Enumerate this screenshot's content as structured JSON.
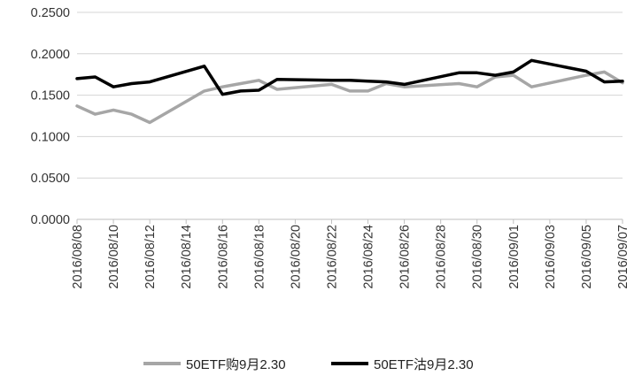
{
  "chart_data": {
    "type": "line",
    "title": "",
    "xlabel": "",
    "ylabel": "",
    "ylim": [
      0,
      0.25
    ],
    "y_ticks": [
      "0.0000",
      "0.0500",
      "0.1000",
      "0.1500",
      "0.2000",
      "0.2500"
    ],
    "grid": "horizontal",
    "legend_position": "bottom",
    "x_ticks": [
      "2016/08/08",
      "2016/08/10",
      "2016/08/12",
      "2016/08/14",
      "2016/08/16",
      "2016/08/18",
      "2016/08/20",
      "2016/08/22",
      "2016/08/24",
      "2016/08/26",
      "2016/08/28",
      "2016/08/30",
      "2016/09/01",
      "2016/09/03",
      "2016/09/05",
      "2016/09/07"
    ],
    "x": [
      "2016/08/08",
      "2016/08/09",
      "2016/08/10",
      "2016/08/11",
      "2016/08/12",
      "2016/08/15",
      "2016/08/16",
      "2016/08/17",
      "2016/08/18",
      "2016/08/19",
      "2016/08/22",
      "2016/08/23",
      "2016/08/24",
      "2016/08/25",
      "2016/08/26",
      "2016/08/29",
      "2016/08/30",
      "2016/08/31",
      "2016/09/01",
      "2016/09/02",
      "2016/09/05",
      "2016/09/06",
      "2016/09/07"
    ],
    "series": [
      {
        "name": "50ETF购9月2.30",
        "color": "#a6a6a6",
        "values": [
          0.137,
          0.127,
          0.132,
          0.127,
          0.117,
          0.155,
          0.16,
          0.164,
          0.168,
          0.157,
          0.163,
          0.155,
          0.155,
          0.164,
          0.16,
          0.164,
          0.16,
          0.172,
          0.174,
          0.16,
          0.174,
          0.178,
          0.165
        ]
      },
      {
        "name": "50ETF沽9月2.30",
        "color": "#000000",
        "values": [
          0.17,
          0.172,
          0.16,
          0.164,
          0.166,
          0.185,
          0.151,
          0.155,
          0.156,
          0.169,
          0.168,
          0.168,
          0.167,
          0.166,
          0.163,
          0.177,
          0.177,
          0.174,
          0.178,
          0.192,
          0.179,
          0.166,
          0.167
        ]
      }
    ]
  }
}
